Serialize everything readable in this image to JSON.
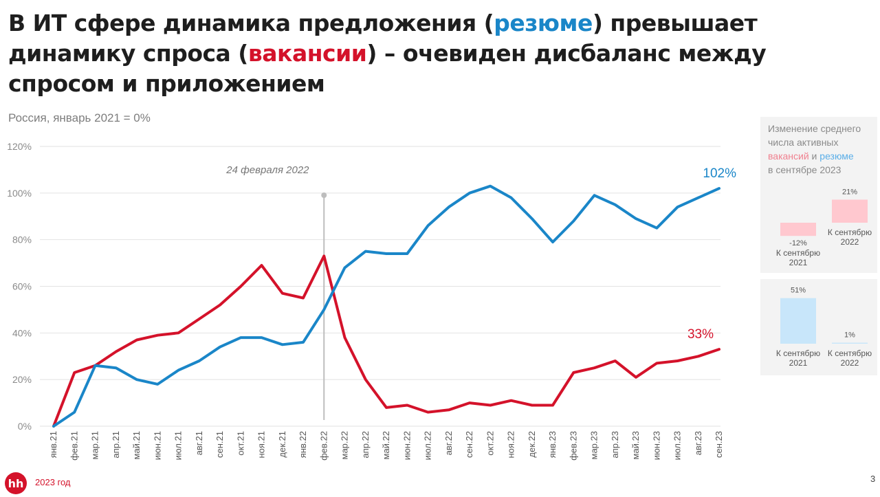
{
  "title": {
    "part1": "В ИТ сфере динамика предложения (",
    "highlight_blue": "резюме",
    "part2": ") превышает динамику спроса (",
    "highlight_red": "вакансии",
    "part3": ") – очевиден дисбаланс между спросом и приложением"
  },
  "subtitle": "Россия, январь 2021 = 0%",
  "colors": {
    "resume": "#1a86c8",
    "vacancy": "#d4122a",
    "resume_light": "#c8e6fa",
    "vacancy_light": "#ffc8cf",
    "grid": "#e2e2e2",
    "marker": "#bdbdbd"
  },
  "chart_data": [
    {
      "type": "line",
      "categories": [
        "янв.21",
        "фев.21",
        "мар.21",
        "апр.21",
        "май.21",
        "июн.21",
        "июл.21",
        "авг.21",
        "сен.21",
        "окт.21",
        "ноя.21",
        "дек.21",
        "янв.22",
        "фев.22",
        "мар.22",
        "апр.22",
        "май.22",
        "июн.22",
        "июл.22",
        "авг.22",
        "сен.22",
        "окт.22",
        "ноя.22",
        "дек.22",
        "янв.23",
        "фев.23",
        "мар.23",
        "апр.23",
        "май.23",
        "июн.23",
        "июл.23",
        "авг.23",
        "сен.23"
      ],
      "series": [
        {
          "key": "resume",
          "values": [
            0,
            6,
            26,
            25,
            20,
            18,
            24,
            28,
            34,
            38,
            38,
            35,
            36,
            50,
            68,
            75,
            74,
            74,
            86,
            94,
            100,
            103,
            98,
            89,
            79,
            88,
            99,
            95,
            89,
            85,
            94,
            98,
            102
          ]
        },
        {
          "key": "vacancy",
          "values": [
            0,
            23,
            26,
            32,
            37,
            39,
            40,
            46,
            52,
            60,
            69,
            57,
            55,
            73,
            38,
            20,
            8,
            9,
            6,
            7,
            10,
            9,
            11,
            9,
            9,
            23,
            25,
            28,
            21,
            27,
            28,
            30,
            33
          ]
        }
      ],
      "yticks": [
        "0%",
        "20%",
        "40%",
        "60%",
        "80%",
        "100%",
        "120%"
      ],
      "ylim": [
        0,
        120
      ],
      "annotation": {
        "label": "24 февраля 2022",
        "category": "фев.22"
      },
      "end_labels": {
        "resume": "102%",
        "vacancy": "33%"
      },
      "grid": true
    },
    {
      "type": "bar",
      "title": {
        "line1": "Изменение среднего числа активных",
        "vacancy_word": "вакансий",
        "and": " и ",
        "resume_word": "резюме",
        "line3": "в сентябре 2023"
      },
      "categories": [
        [
          "К сентябрю",
          "2021"
        ],
        [
          "К сентябрю",
          "2022"
        ]
      ],
      "values": [
        -12,
        21
      ],
      "value_labels": [
        "-12%",
        "21%"
      ]
    },
    {
      "type": "bar",
      "categories": [
        [
          "К сентябрю",
          "2021"
        ],
        [
          "К сентябрю",
          "2022"
        ]
      ],
      "values": [
        51,
        1
      ],
      "value_labels": [
        "51%",
        "1%"
      ]
    }
  ],
  "footer": {
    "logo_text": "hh",
    "year": "2023 год",
    "page": "3"
  }
}
